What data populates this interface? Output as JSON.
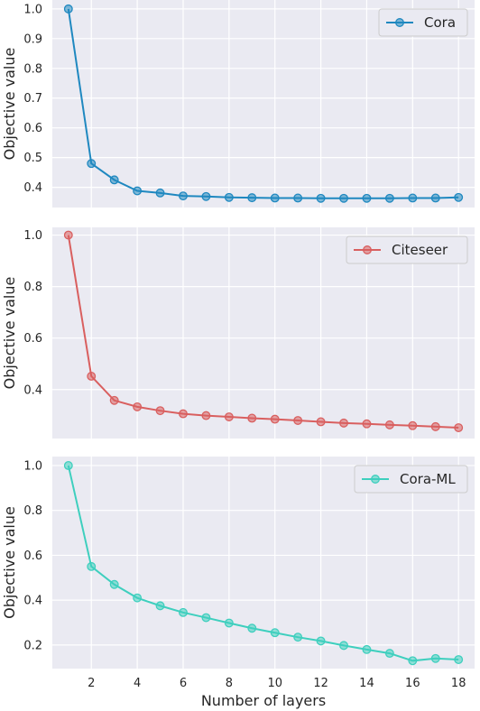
{
  "chart_data": [
    {
      "type": "line",
      "ylabel": "Objective value",
      "xlabel": "",
      "xlim": [
        0.3,
        18.7
      ],
      "ylim": [
        0.332,
        1.03
      ],
      "yticks": [
        0.4,
        0.5,
        0.6,
        0.7,
        0.8,
        0.9,
        1.0
      ],
      "ytick_labels": [
        "0.4",
        "0.5",
        "0.6",
        "0.7",
        "0.8",
        "0.9",
        "1.0"
      ],
      "xticks": [
        2,
        4,
        6,
        8,
        10,
        12,
        14,
        16,
        18
      ],
      "xtick_labels": [],
      "grid": true,
      "legend_position": "top-right",
      "series": [
        {
          "name": "Cora",
          "color": "#1f88c0",
          "x": [
            1,
            2,
            3,
            4,
            5,
            6,
            7,
            8,
            9,
            10,
            11,
            12,
            13,
            14,
            15,
            16,
            17,
            18
          ],
          "values": [
            1.0,
            0.48,
            0.425,
            0.388,
            0.381,
            0.371,
            0.369,
            0.366,
            0.365,
            0.364,
            0.364,
            0.363,
            0.363,
            0.363,
            0.363,
            0.364,
            0.364,
            0.366
          ]
        }
      ]
    },
    {
      "type": "line",
      "ylabel": "Objective value",
      "xlabel": "",
      "xlim": [
        0.3,
        18.7
      ],
      "ylim": [
        0.21,
        1.03
      ],
      "yticks": [
        0.4,
        0.6,
        0.8,
        1.0
      ],
      "ytick_labels": [
        "0.4",
        "0.6",
        "0.8",
        "1.0"
      ],
      "xticks": [
        2,
        4,
        6,
        8,
        10,
        12,
        14,
        16,
        18
      ],
      "xtick_labels": [],
      "grid": true,
      "legend_position": "top-right",
      "series": [
        {
          "name": "Citeseer",
          "color": "#d95f5f",
          "x": [
            1,
            2,
            3,
            4,
            5,
            6,
            7,
            8,
            9,
            10,
            11,
            12,
            13,
            14,
            15,
            16,
            17,
            18
          ],
          "values": [
            1.0,
            0.452,
            0.358,
            0.333,
            0.318,
            0.306,
            0.299,
            0.294,
            0.289,
            0.285,
            0.28,
            0.275,
            0.27,
            0.267,
            0.263,
            0.26,
            0.256,
            0.252
          ]
        }
      ]
    },
    {
      "type": "line",
      "ylabel": "Objective value",
      "xlabel": "Number of layers",
      "xlim": [
        0.3,
        18.7
      ],
      "ylim": [
        0.095,
        1.04
      ],
      "yticks": [
        0.2,
        0.4,
        0.6,
        0.8,
        1.0
      ],
      "ytick_labels": [
        "0.2",
        "0.4",
        "0.6",
        "0.8",
        "1.0"
      ],
      "xticks": [
        2,
        4,
        6,
        8,
        10,
        12,
        14,
        16,
        18
      ],
      "xtick_labels": [
        "2",
        "4",
        "6",
        "8",
        "10",
        "12",
        "14",
        "16",
        "18"
      ],
      "grid": true,
      "legend_position": "top-right",
      "series": [
        {
          "name": "Cora-ML",
          "color": "#3ecfbe",
          "x": [
            1,
            2,
            3,
            4,
            5,
            6,
            7,
            8,
            9,
            10,
            11,
            12,
            13,
            14,
            15,
            16,
            17,
            18
          ],
          "values": [
            1.0,
            0.55,
            0.47,
            0.41,
            0.375,
            0.345,
            0.322,
            0.298,
            0.275,
            0.255,
            0.235,
            0.218,
            0.198,
            0.18,
            0.163,
            0.13,
            0.14,
            0.135
          ]
        }
      ]
    }
  ]
}
